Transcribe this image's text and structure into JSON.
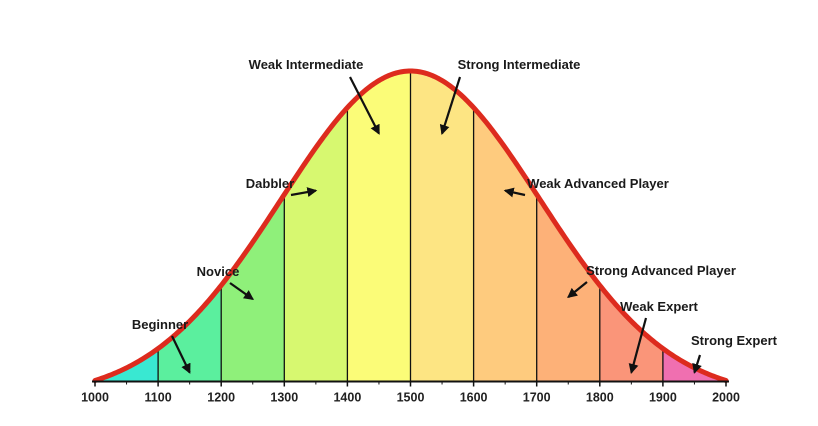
{
  "diagram": {
    "x_axis": {
      "min": 1000,
      "max": 2000,
      "ticks": [
        "1000",
        "1100",
        "1200",
        "1300",
        "1400",
        "1500",
        "1600",
        "1700",
        "1800",
        "1900",
        "2000"
      ],
      "minor_ticks": [
        1050,
        1150,
        1250,
        1350,
        1450,
        1550,
        1650,
        1750,
        1850,
        1950
      ]
    },
    "curve": {
      "type": "normal",
      "mean": 1500,
      "std_dev": 205,
      "color": "#dd2b1e"
    },
    "bands": [
      {
        "label": "Beginner",
        "from": 1000,
        "to": 1100,
        "color": "#39e8d2"
      },
      {
        "label": "Novice",
        "from": 1100,
        "to": 1200,
        "color": "#5bef9e"
      },
      {
        "label": "Dabbler",
        "from": 1200,
        "to": 1300,
        "color": "#8ff07a"
      },
      {
        "label": "Weak Intermediate",
        "from": 1300,
        "to": 1400,
        "color": "#d7f870"
      },
      {
        "label": "Strong Intermediate",
        "from": 1400,
        "to": 1500,
        "color": "#fbfc78"
      },
      {
        "label": "Weak Advanced Player",
        "from": 1500,
        "to": 1600,
        "color": "#fde583"
      },
      {
        "label": "Strong Advanced Player",
        "from": 1600,
        "to": 1700,
        "color": "#fecb7e"
      },
      {
        "label": "Weak Expert",
        "from": 1700,
        "to": 1800,
        "color": "#fdb178"
      },
      {
        "label": "Strong Expert",
        "from": 1800,
        "to": 1900,
        "color": "#fa9579"
      },
      {
        "label": "",
        "from": 1900,
        "to": 2000,
        "color": "#f06fb0"
      }
    ],
    "labels": [
      {
        "text": "Beginner",
        "arrow_to": 1150
      },
      {
        "text": "Novice",
        "arrow_to": 1250
      },
      {
        "text": "Dabbler",
        "arrow_to": 1350
      },
      {
        "text": "Weak Intermediate",
        "arrow_to": 1450
      },
      {
        "text": "Strong Intermediate",
        "arrow_to": 1550
      },
      {
        "text": "Weak Advanced Player",
        "arrow_to": 1650
      },
      {
        "text": "Strong Advanced Player",
        "arrow_to": 1750
      },
      {
        "text": "Weak Expert",
        "arrow_to": 1850
      },
      {
        "text": "Strong Expert",
        "arrow_to": 1950
      }
    ]
  }
}
